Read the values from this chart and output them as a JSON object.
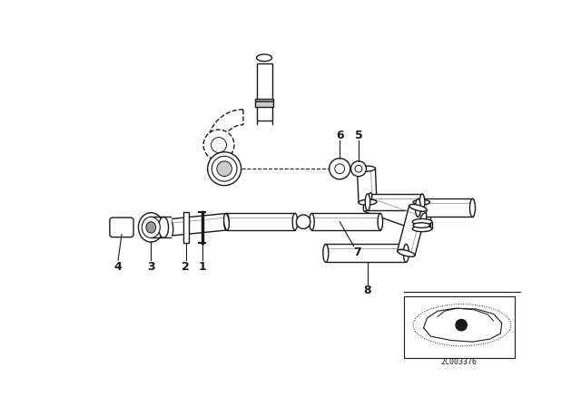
{
  "bg_color": "#ffffff",
  "line_color": "#1a1a1a",
  "diagram_id": "2C003376",
  "figsize": [
    6.4,
    4.48
  ],
  "dpi": 100,
  "xlim": [
    0,
    640
  ],
  "ylim": [
    0,
    448
  ]
}
